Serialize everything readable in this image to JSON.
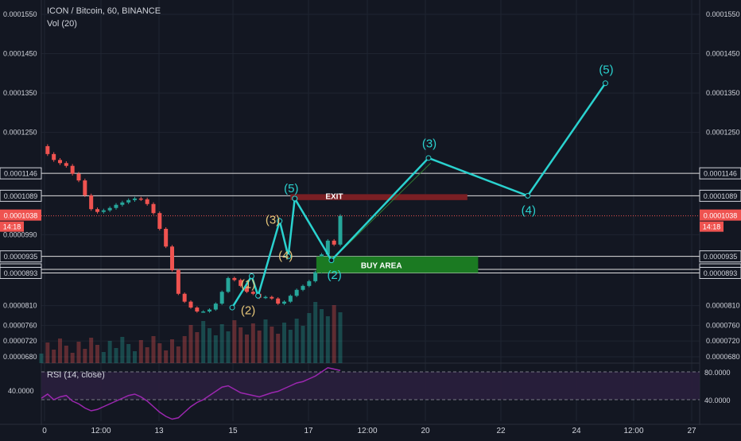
{
  "header": {
    "symbol_line": "ICON / Bitcoin, 60, BINANCE",
    "volume_label": "Vol (20)",
    "rsi_label": "RSI (14, close)"
  },
  "colors": {
    "background": "#131722",
    "up": "#26a69a",
    "down": "#ef5350",
    "wave": "#2ad2cf",
    "wave_label_old": "#e8c77a",
    "price_line": "#ef5350",
    "exit_box": "#7a1f24",
    "buy_box": "#1b7a22",
    "rsi": "#9c27b0"
  },
  "annotations": {
    "exit_label": "EXIT",
    "buy_label": "BUY AREA"
  },
  "chart_data": {
    "type": "candlestick",
    "x_ticks": [
      "0",
      "12:00",
      "13",
      "15",
      "17",
      "12:00",
      "20",
      "22",
      "24",
      "12:00",
      "27"
    ],
    "y_ticks": [
      "0.0001550",
      "0.0001450",
      "0.0001350",
      "0.0001250",
      "0.0000990",
      "0.0000810",
      "0.0000760",
      "0.0000720",
      "0.0000680"
    ],
    "right_y_ticks": [
      "0.0001550",
      "0.0001450",
      "0.0001350",
      "0.0001250",
      "0.0000810",
      "0.0000760",
      "0.0000720",
      "0.0000680"
    ],
    "horizontal_levels": [
      "0.0001146",
      "0.0001089",
      "0.0000935",
      "0.0000902",
      "0.0000893"
    ],
    "current_price": "0.0001038",
    "countdown": "14:18",
    "price_path": [
      0.0001215,
      0.0001195,
      0.000118,
      0.0001172,
      0.0001165,
      0.0001145,
      0.0001128,
      0.000109,
      0.0001055,
      0.0001048,
      0.0001052,
      0.0001058,
      0.0001066,
      0.0001072,
      0.0001078,
      0.0001082,
      0.000108,
      0.0001068,
      0.0001045,
      0.0001005,
      9.6e-05,
      9e-05,
      8.4e-05,
      8.2e-05,
      8.05e-05,
      7.95e-05,
      7.95e-05,
      8e-05,
      8.15e-05,
      8.45e-05,
      8.8e-05,
      8.75e-05,
      8.6e-05,
      8.45e-05,
      8.4e-05,
      8.3e-05,
      8.32e-05,
      8.28e-05,
      8.15e-05,
      8.2e-05,
      8.35e-05,
      8.5e-05,
      8.6e-05,
      8.72e-05,
      8.95e-05,
      9.4e-05,
      9.75e-05,
      9.65e-05,
      0.0001038
    ],
    "wave_old": {
      "labels": [
        "(1)",
        "(2)",
        "(3)",
        "(4)",
        "(5)"
      ],
      "points": [
        [
          16.35,
          8.05e-05
        ],
        [
          16.8,
          8.85e-05
        ],
        [
          16.95,
          8.35e-05
        ],
        [
          17.45,
          0.0001025
        ],
        [
          17.65,
          9.35e-05
        ],
        [
          17.8,
          0.0001082
        ]
      ]
    },
    "wave_projection": {
      "labels": [
        "(2)",
        "(3)",
        "(4)",
        "(5)"
      ],
      "points": [
        [
          17.8,
          0.0001082
        ],
        [
          18.65,
          9.25e-05
        ],
        [
          20.9,
          0.0001185
        ],
        [
          23.2,
          0.0001089
        ],
        [
          25.0,
          0.0001375
        ]
      ]
    },
    "rsi": {
      "levels": [
        "80.0000",
        "40.0000"
      ],
      "values": [
        42,
        48,
        40,
        44,
        46,
        38,
        34,
        28,
        24,
        26,
        30,
        34,
        38,
        42,
        46,
        48,
        44,
        38,
        30,
        22,
        16,
        12,
        14,
        22,
        30,
        36,
        40,
        46,
        52,
        58,
        60,
        55,
        50,
        48,
        46,
        44,
        47,
        50,
        52,
        56,
        60,
        64,
        66,
        70,
        74,
        80,
        86,
        84,
        82
      ]
    }
  }
}
